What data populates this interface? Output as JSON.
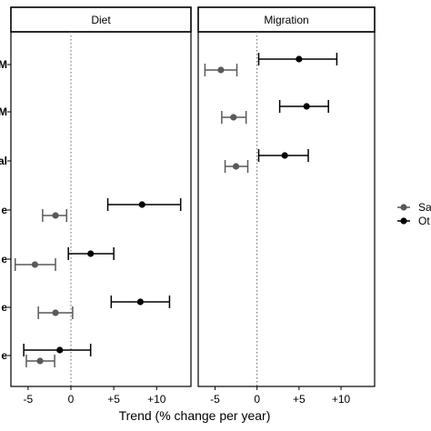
{
  "chart_data": {
    "type": "scatter",
    "xlabel": "Trend (% change per year)",
    "xlim": [
      -7,
      14
    ],
    "x_ticks": [
      -5,
      0,
      5,
      10
    ],
    "x_tick_labels": [
      "-5",
      "0",
      "+5",
      "+10"
    ],
    "zero_line": 0,
    "y_labels_visible": [
      "M",
      "M",
      "al",
      "e",
      "e",
      "e",
      "e"
    ],
    "panels": [
      {
        "strip": "Diet",
        "points": [
          {
            "row": 3,
            "group": "Sa",
            "x": -1.8,
            "lo": -3.3,
            "hi": -0.5
          },
          {
            "row": 3,
            "group": "Ot",
            "x": 8.3,
            "lo": 4.3,
            "hi": 12.8
          },
          {
            "row": 4,
            "group": "Sa",
            "x": -4.2,
            "lo": -6.5,
            "hi": -1.8
          },
          {
            "row": 4,
            "group": "Ot",
            "x": 2.3,
            "lo": -0.3,
            "hi": 5.0
          },
          {
            "row": 5,
            "group": "Sa",
            "x": -1.8,
            "lo": -3.8,
            "hi": 0.2
          },
          {
            "row": 5,
            "group": "Ot",
            "x": 8.1,
            "lo": 4.7,
            "hi": 11.5
          },
          {
            "row": 6,
            "group": "Sa",
            "x": -3.6,
            "lo": -5.2,
            "hi": -1.9
          },
          {
            "row": 6,
            "group": "Ot",
            "x": -1.3,
            "lo": -5.5,
            "hi": 2.3
          }
        ]
      },
      {
        "strip": "Migration",
        "points": [
          {
            "row": 0,
            "group": "Sa",
            "x": -4.3,
            "lo": -6.2,
            "hi": -2.4
          },
          {
            "row": 0,
            "group": "Ot",
            "x": 5.0,
            "lo": 0.2,
            "hi": 9.5
          },
          {
            "row": 1,
            "group": "Sa",
            "x": -2.8,
            "lo": -4.2,
            "hi": -1.3
          },
          {
            "row": 1,
            "group": "Ot",
            "x": 5.9,
            "lo": 2.7,
            "hi": 8.5
          },
          {
            "row": 2,
            "group": "Sa",
            "x": -2.5,
            "lo": -3.8,
            "hi": -1.1
          },
          {
            "row": 2,
            "group": "Ot",
            "x": 3.3,
            "lo": 0.2,
            "hi": 6.1
          }
        ]
      }
    ],
    "legend": {
      "position": "right",
      "entries": [
        {
          "label": "Sa",
          "color": "#595959"
        },
        {
          "label": "Ot",
          "color": "#000000"
        }
      ]
    }
  }
}
